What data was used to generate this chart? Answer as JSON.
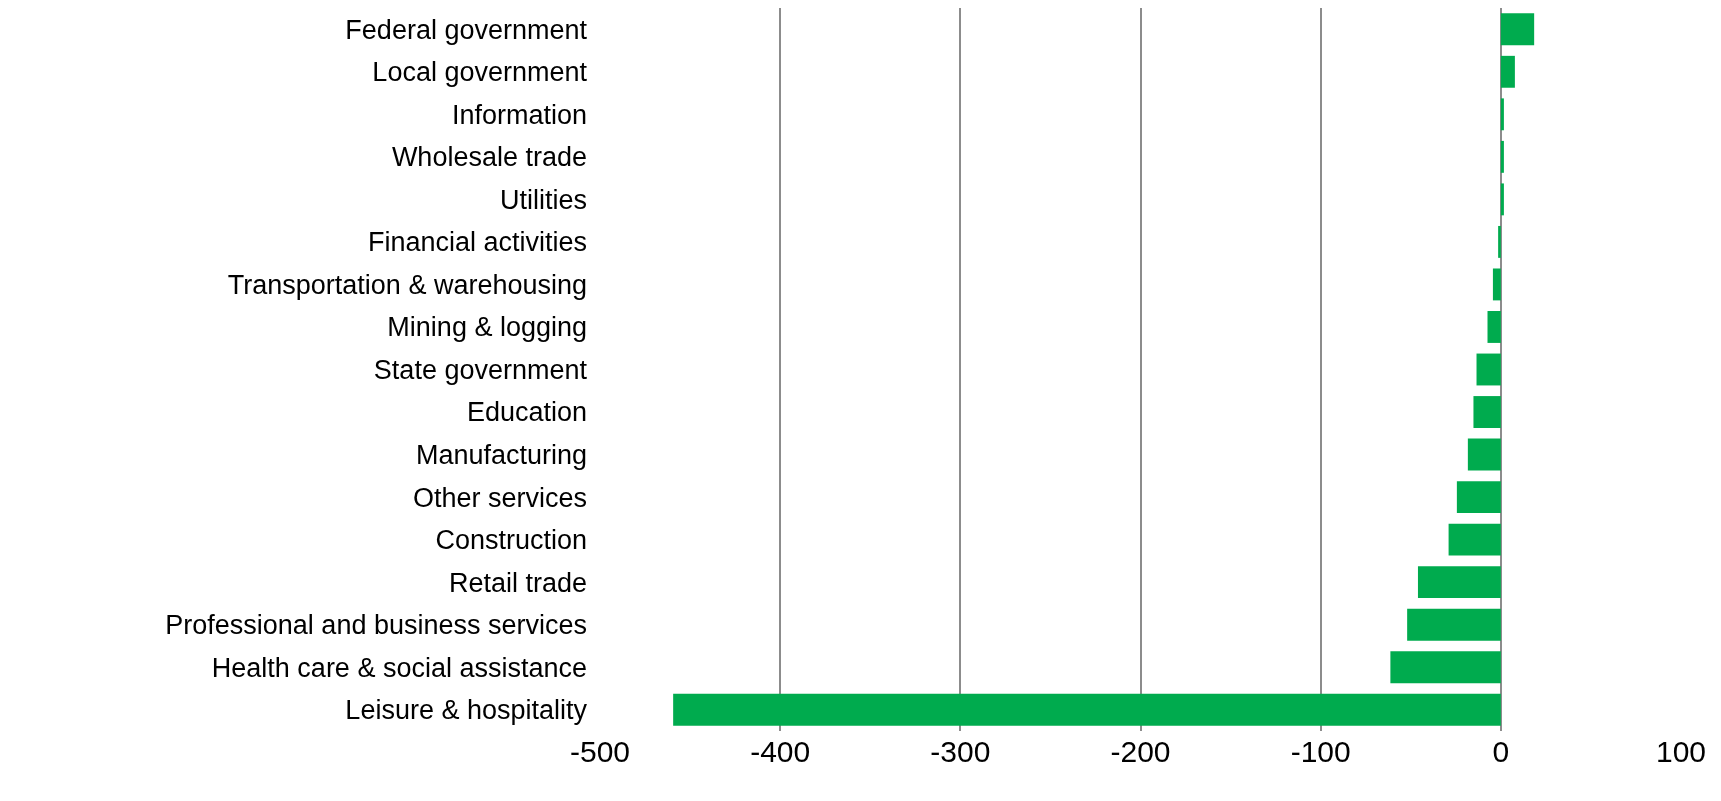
{
  "chart_data": {
    "type": "bar",
    "orientation": "horizontal",
    "categories": [
      "Federal government",
      "Local government",
      "Information",
      "Wholesale trade",
      "Utilities",
      "Financial activities",
      "Transportation & warehousing",
      "Mining & logging",
      "State government",
      "Education",
      "Manufacturing",
      "Other services",
      "Construction",
      "Retail trade",
      "Professional and business services",
      "Health care & social assistance",
      "Leisure & hospitality"
    ],
    "values": [
      18.5,
      7.8,
      1.7,
      1.7,
      1.7,
      -1.5,
      -4.4,
      -7.4,
      -13.5,
      -15.2,
      -18.3,
      -24.4,
      -29,
      -46,
      -52,
      -61.3,
      -459.4
    ],
    "color": "#00ab4e",
    "xlim": [
      -500,
      100
    ],
    "xticks": [
      -500,
      -400,
      -300,
      -200,
      -100,
      0,
      100
    ],
    "grid": "x"
  }
}
